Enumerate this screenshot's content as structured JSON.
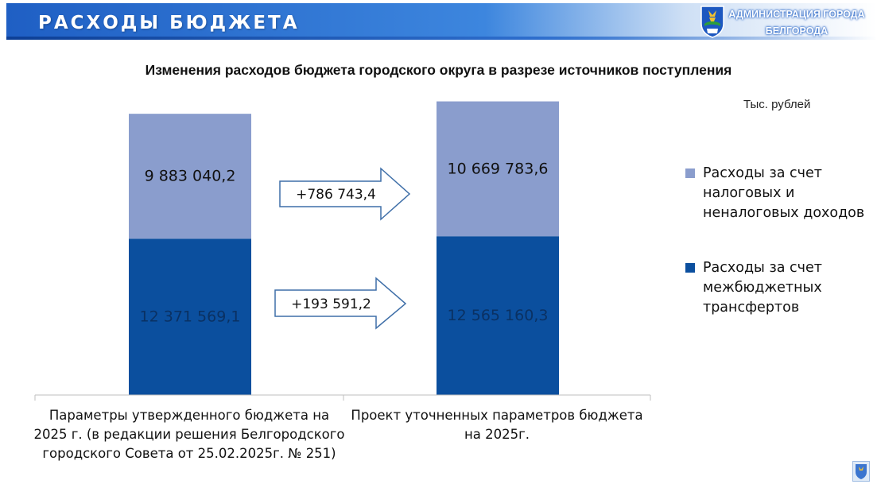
{
  "header": {
    "title": "РАСХОДЫ БЮДЖЕТА",
    "org_line1": "АДМИНИСТРАЦИЯ ГОРОДА",
    "org_line2": "БЕЛГОРОДА"
  },
  "icons": {
    "coat_of_arms": "belgorod-coat-of-arms-icon",
    "corner_logo": "belgorod-coat-of-arms-icon"
  },
  "chart_data": {
    "type": "bar",
    "stacked": true,
    "title": "Изменения расходов бюджета городского округа в разрезе источников поступления",
    "unit": "Тыс. рублей",
    "categories": [
      "Параметры утвержденного бюджета на 2025 г. (в редакции решения Белгородского городского Совета от 25.02.2025г. № 251)",
      "Проект уточненных параметров бюджета на 2025г."
    ],
    "series": [
      {
        "name": "Расходы за счет межбюджетных трансфертов",
        "values": [
          12371569.1,
          12565160.3
        ],
        "labels": [
          "12 371 569,1",
          "12 565 160,3"
        ],
        "color": "#0b4f9e",
        "label_color": "#0a3163"
      },
      {
        "name": "Расходы за счет налоговых и неналоговых доходов",
        "values": [
          9883040.2,
          10669783.6
        ],
        "labels": [
          "9 883 040,2",
          "10 669 783,6"
        ],
        "color": "#8a9dcd",
        "label_color": "#111111"
      }
    ],
    "changes": [
      {
        "series": "Расходы за счет налоговых и неналоговых доходов",
        "value": 786743.4,
        "label": "+786 743,4"
      },
      {
        "series": "Расходы за счет межбюджетных трансфертов",
        "value": 193591.2,
        "label": "+193 591,2"
      }
    ],
    "ylim": [
      0,
      23500000
    ],
    "grid": false,
    "legend_position": "right"
  }
}
